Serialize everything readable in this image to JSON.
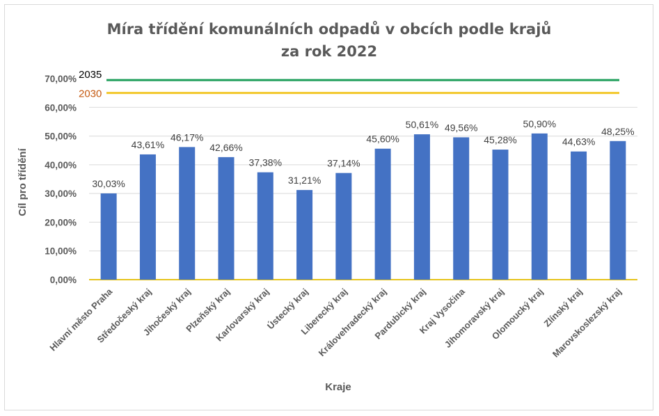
{
  "chart_data": {
    "type": "bar",
    "title_line1": "Míra třídění komunálních odpadů v obcích podle krajů",
    "title_line2": "za rok 2022",
    "xlabel": "Kraje",
    "ylabel": "Cíl pro třídění",
    "ylim": [
      0,
      70
    ],
    "yticks": [
      0,
      10,
      20,
      30,
      40,
      50,
      60,
      70
    ],
    "ytick_labels": [
      "0,00%",
      "10,00%",
      "20,00%",
      "30,00%",
      "40,00%",
      "50,00%",
      "60,00%",
      "70,00%"
    ],
    "grid": true,
    "categories": [
      "Hlavní město Praha",
      "Středočeský kraj",
      "Jihočeský kraj",
      "Plzeňský kraj",
      "Karlovarský kraj",
      "Ústecký kraj",
      "Liberecký kraj",
      "Královehradecký kraj",
      "Pardubický kraj",
      "Kraj Vysočina",
      "Jihomoravský kraj",
      "Olomoucký kraj",
      "Zlínský kraj",
      "Marovskoslezský kraj"
    ],
    "values": [
      30.03,
      43.61,
      46.17,
      42.66,
      37.38,
      31.21,
      37.14,
      45.6,
      50.61,
      49.56,
      45.28,
      50.9,
      44.63,
      48.25
    ],
    "value_labels": [
      "30,03%",
      "43,61%",
      "46,17%",
      "42,66%",
      "37,38%",
      "31,21%",
      "37,14%",
      "45,60%",
      "50,61%",
      "49,56%",
      "45,28%",
      "50,90%",
      "44,63%",
      "48,25%"
    ],
    "bar_color": "#4472c4",
    "reference_lines": [
      {
        "label": "2035",
        "value": 69.5,
        "color": "#1e9e5a",
        "label_color": "#000000"
      },
      {
        "label": "2030",
        "value": 65.0,
        "color": "#f2c72a",
        "label_color": "#c55a11"
      }
    ],
    "baseline_color": "#e6c31a",
    "grid_color": "#d9d9d9"
  }
}
